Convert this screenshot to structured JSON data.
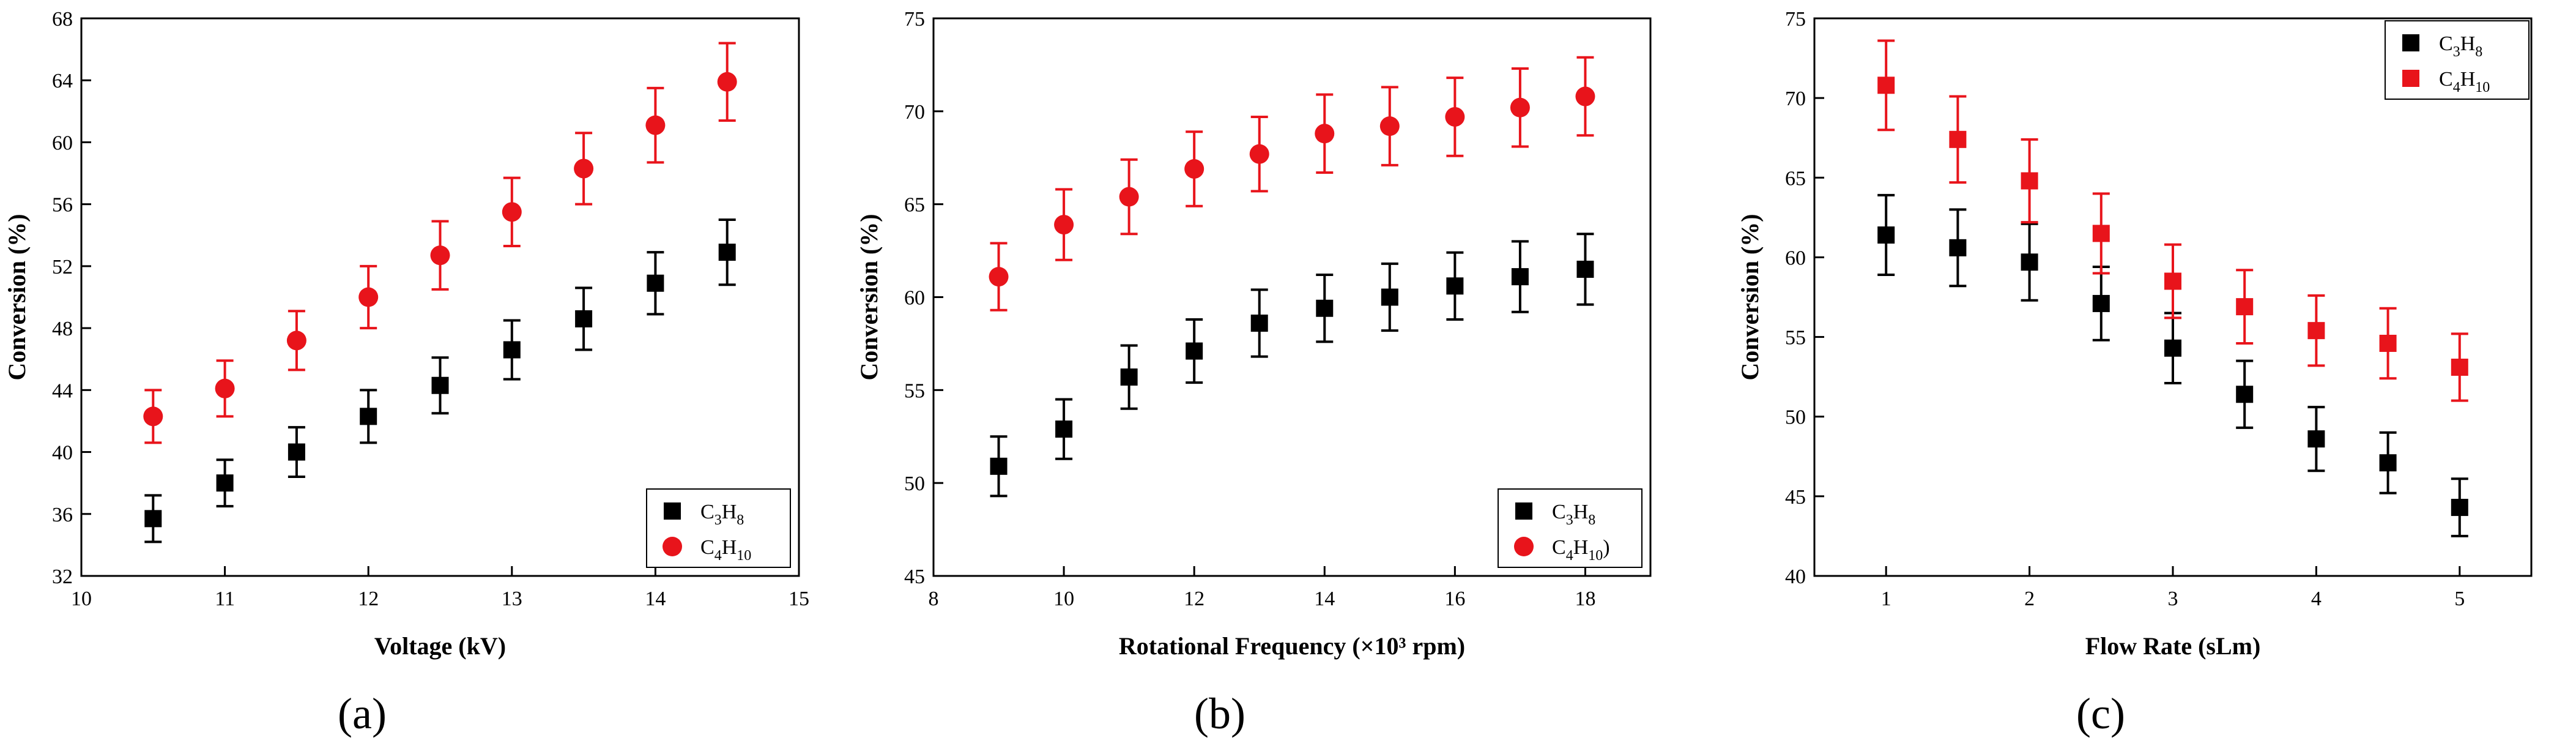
{
  "chart_data": [
    {
      "type": "scatter",
      "panel_label": "(a)",
      "xlabel": "Voltage (kV)",
      "ylabel": "Conversion (%)",
      "xlim": [
        10,
        15
      ],
      "ylim": [
        32,
        68
      ],
      "xticks": [
        "10",
        "11",
        "12",
        "13",
        "14",
        "15"
      ],
      "yticks": [
        "32",
        "36",
        "40",
        "44",
        "48",
        "52",
        "56",
        "60",
        "64",
        "68"
      ],
      "legend": "bottom-right",
      "series": [
        {
          "name": "C3H8",
          "name_base": "C",
          "name_sub1": "3",
          "name_mid": "H",
          "name_sub2": "8",
          "name_suffix": "",
          "marker": "square",
          "color": "#000000",
          "x": [
            10.5,
            11,
            11.5,
            12,
            12.5,
            13,
            13.5,
            14,
            14.5
          ],
          "y": [
            35.7,
            38.0,
            40.0,
            42.3,
            44.3,
            46.6,
            48.6,
            50.9,
            52.9
          ],
          "err": [
            1.5,
            1.5,
            1.6,
            1.7,
            1.8,
            1.9,
            2.0,
            2.0,
            2.1
          ]
        },
        {
          "name": "C4H10",
          "name_base": "C",
          "name_sub1": "4",
          "name_mid": "H",
          "name_sub2": "10",
          "name_suffix": "",
          "marker": "circle",
          "color": "#e8141b",
          "x": [
            10.5,
            11,
            11.5,
            12,
            12.5,
            13,
            13.5,
            14,
            14.5
          ],
          "y": [
            42.3,
            44.1,
            47.2,
            50.0,
            52.7,
            55.5,
            58.3,
            61.1,
            63.9
          ],
          "err": [
            1.7,
            1.8,
            1.9,
            2.0,
            2.2,
            2.2,
            2.3,
            2.4,
            2.5
          ]
        }
      ]
    },
    {
      "type": "scatter",
      "panel_label": "(b)",
      "xlabel": "Rotational Frequency (×10³ rpm)",
      "ylabel": "Conversion (%)",
      "xlim": [
        8,
        19
      ],
      "ylim": [
        45,
        75
      ],
      "xticks": [
        "8",
        "10",
        "12",
        "14",
        "16",
        "18"
      ],
      "xtick_values": [
        8,
        10,
        12,
        14,
        16,
        18
      ],
      "yticks": [
        "45",
        "50",
        "55",
        "60",
        "65",
        "70",
        "75"
      ],
      "legend": "bottom-right",
      "series": [
        {
          "name": "C3H8",
          "name_base": "C",
          "name_sub1": "3",
          "name_mid": "H",
          "name_sub2": "8",
          "name_suffix": "",
          "marker": "square",
          "color": "#000000",
          "x": [
            9,
            10,
            11,
            12,
            13,
            14,
            15,
            16,
            17,
            18
          ],
          "y": [
            50.9,
            52.9,
            55.7,
            57.1,
            58.6,
            59.4,
            60.0,
            60.6,
            61.1,
            61.5
          ],
          "err": [
            1.6,
            1.6,
            1.7,
            1.7,
            1.8,
            1.8,
            1.8,
            1.8,
            1.9,
            1.9
          ]
        },
        {
          "name": "C4H10)",
          "name_base": "C",
          "name_sub1": "4",
          "name_mid": "H",
          "name_sub2": "10",
          "name_suffix": ")",
          "marker": "circle",
          "color": "#e8141b",
          "x": [
            9,
            10,
            11,
            12,
            13,
            14,
            15,
            16,
            17,
            18
          ],
          "y": [
            61.1,
            63.9,
            65.4,
            66.9,
            67.7,
            68.8,
            69.2,
            69.7,
            70.2,
            70.8
          ],
          "err": [
            1.8,
            1.9,
            2.0,
            2.0,
            2.0,
            2.1,
            2.1,
            2.1,
            2.1,
            2.1
          ]
        }
      ]
    },
    {
      "type": "scatter",
      "panel_label": "(c)",
      "xlabel": "Flow Rate (sLm)",
      "ylabel": "Conversion (%)",
      "xlim": [
        0.5,
        5.5
      ],
      "ylim": [
        40,
        75
      ],
      "xticks": [
        "1",
        "2",
        "3",
        "4",
        "5"
      ],
      "xtick_values": [
        1,
        2,
        3,
        4,
        5
      ],
      "yticks": [
        "40",
        "45",
        "50",
        "55",
        "60",
        "65",
        "70",
        "75"
      ],
      "legend": "top-right",
      "series": [
        {
          "name": "C3H8",
          "name_base": "C",
          "name_sub1": "3",
          "name_mid": "H",
          "name_sub2": "8",
          "name_suffix": "",
          "marker": "square",
          "color": "#000000",
          "x": [
            1,
            1.5,
            2,
            2.5,
            3,
            3.5,
            4,
            4.5,
            5
          ],
          "y": [
            61.4,
            60.6,
            59.7,
            57.1,
            54.3,
            51.4,
            48.6,
            47.1,
            44.3
          ],
          "err": [
            2.5,
            2.4,
            2.4,
            2.3,
            2.2,
            2.1,
            2.0,
            1.9,
            1.8
          ]
        },
        {
          "name": "C4H10",
          "name_base": "C",
          "name_sub1": "4",
          "name_mid": "H",
          "name_sub2": "10",
          "name_suffix": "",
          "marker": "square",
          "color": "#e8141b",
          "x": [
            1,
            1.5,
            2,
            2.5,
            3,
            3.5,
            4,
            4.5,
            5
          ],
          "y": [
            70.8,
            67.4,
            64.8,
            61.5,
            58.5,
            56.9,
            55.4,
            54.6,
            53.1
          ],
          "err": [
            2.8,
            2.7,
            2.6,
            2.5,
            2.3,
            2.3,
            2.2,
            2.2,
            2.1
          ]
        }
      ]
    }
  ]
}
